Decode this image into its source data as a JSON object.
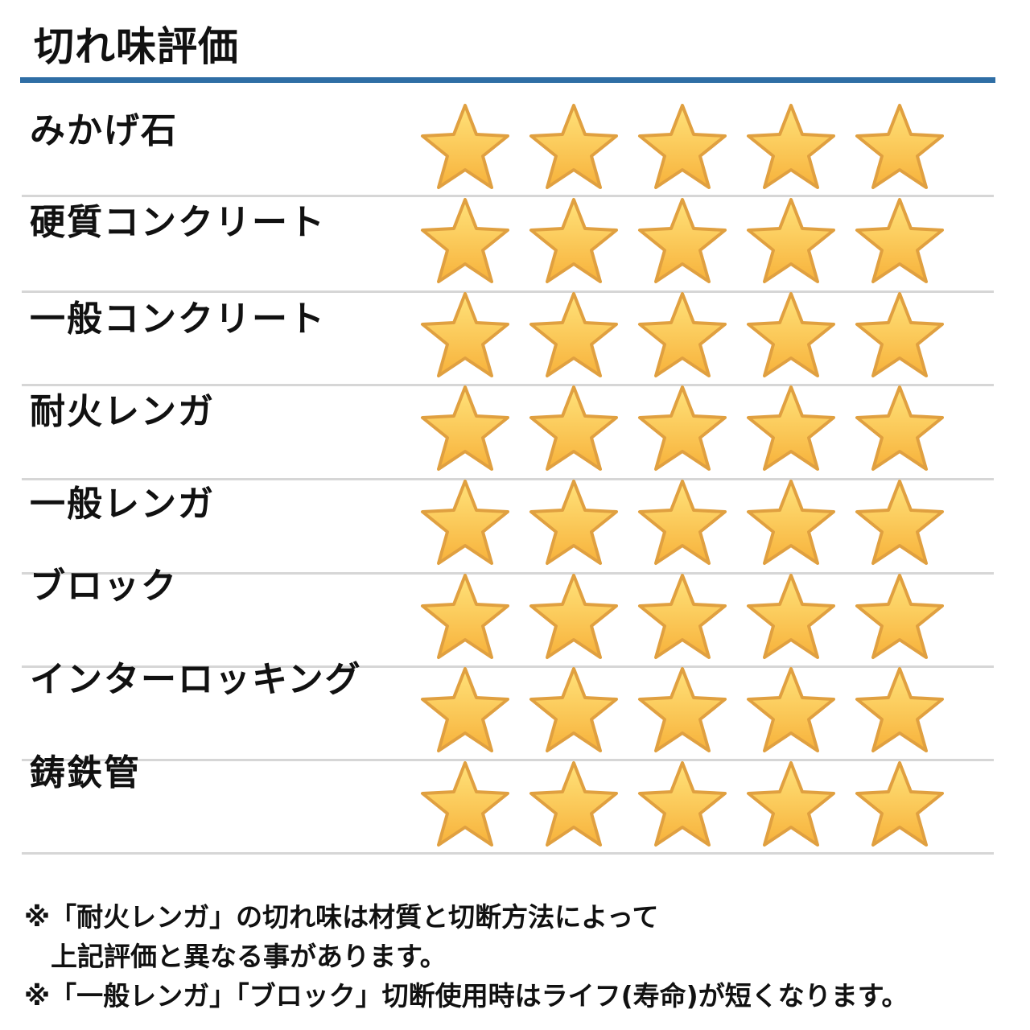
{
  "title": "切れ味評価",
  "star_colors": {
    "fill_top": "#ffe27a",
    "fill_bottom": "#f7b23b",
    "stroke": "#e0a040"
  },
  "max_rating": 5,
  "rows": [
    {
      "label": "みかげ石",
      "rating": 5
    },
    {
      "label": "硬質コンクリート",
      "rating": 5
    },
    {
      "label": "一般コンクリート",
      "rating": 5
    },
    {
      "label": "耐火レンガ",
      "rating": 5
    },
    {
      "label": "一般レンガ",
      "rating": 5
    },
    {
      "label": "ブロック",
      "rating": 5
    },
    {
      "label": "インターロッキング",
      "rating": 5
    },
    {
      "label": "鋳鉄管",
      "rating": 5
    }
  ],
  "notes": [
    "※「耐火レンガ」の切れ味は材質と切断方法によって",
    "　上記評価と異なる事があります。",
    "※「一般レンガ」「ブロック」切断使用時はライフ(寿命)が短くなります。"
  ]
}
